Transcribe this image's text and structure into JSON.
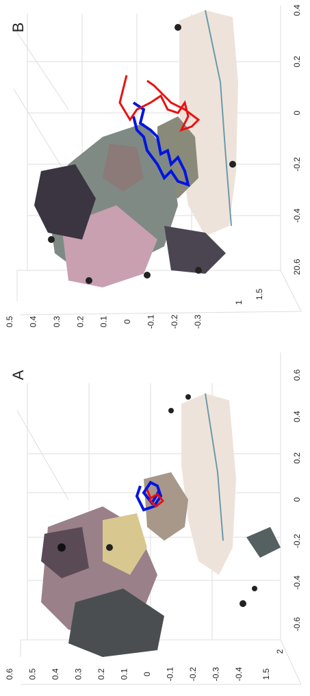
{
  "panels": [
    {
      "label": "B",
      "x_ticks": [
        "0.4",
        "0.2",
        "0",
        "-0.2",
        "-0.4",
        "20.6"
      ],
      "z_ticks": [
        "0.5",
        "0.4",
        "0.3",
        "0.2",
        "0.1",
        "0",
        "-0.1",
        "-0.2",
        "-0.3"
      ],
      "depth_ticks": [
        "1.5",
        "1"
      ]
    },
    {
      "label": "A",
      "x_ticks": [
        "0.6",
        "0.4",
        "0.2",
        "0",
        "-0.2",
        "-0.4",
        "-0.6"
      ],
      "z_ticks": [
        "0.6",
        "0.5",
        "0.4",
        "0.3",
        "0.2",
        "0.1",
        "0",
        "-0.1",
        "-0.2",
        "-0.3",
        "-0.4"
      ],
      "depth_ticks": [
        "2",
        "1.5"
      ]
    }
  ]
}
